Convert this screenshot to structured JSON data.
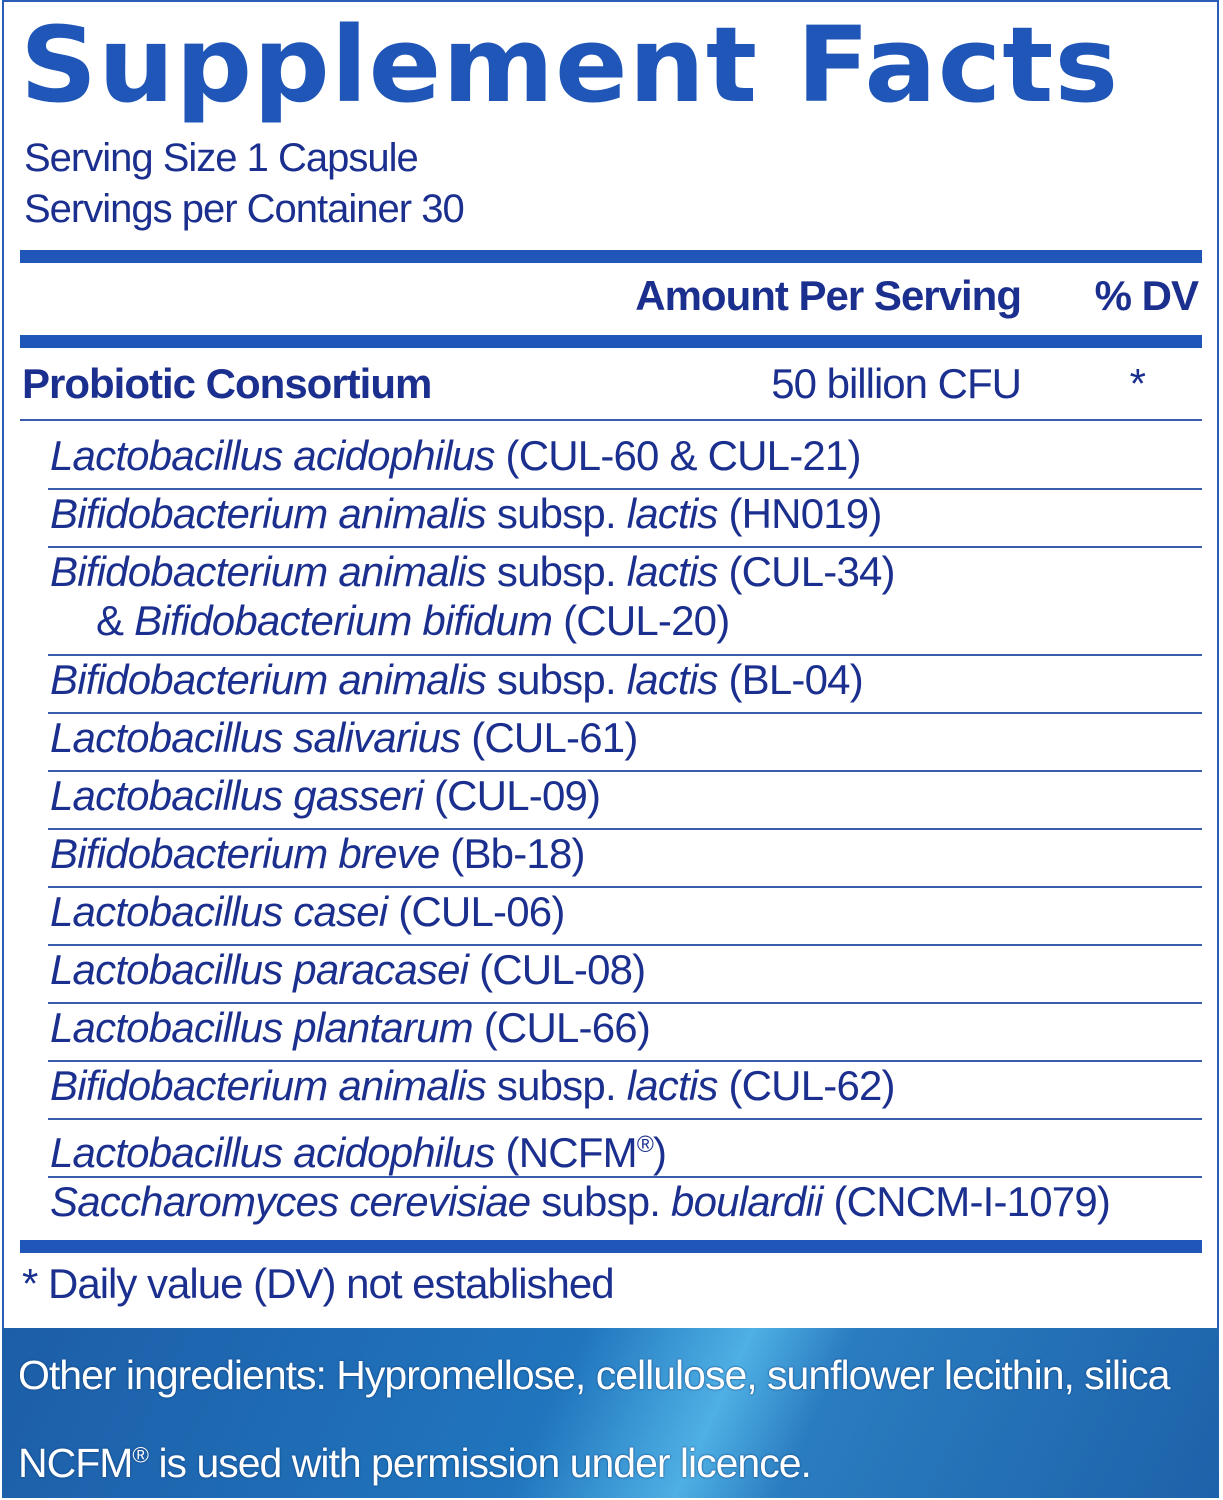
{
  "title": "Supplement Facts",
  "serving_size": "Serving Size 1 Capsule",
  "servings_per_container": "Servings per Container 30",
  "header": {
    "amount": "Amount Per Serving",
    "dv": "% DV"
  },
  "consortium": {
    "name": "Probiotic Consortium",
    "amount": "50 billion CFU",
    "dv": "*"
  },
  "ingredients": [
    [
      {
        "t": "Lactobacillus acidophilus",
        "i": true
      },
      {
        "t": " (CUL-60 & CUL-21)",
        "i": false
      }
    ],
    [
      {
        "t": "Bifidobacterium animalis",
        "i": true
      },
      {
        "t": " subsp. ",
        "i": false
      },
      {
        "t": "lactis",
        "i": true
      },
      {
        "t": " (HN019)",
        "i": false
      }
    ],
    [
      {
        "t": "Bifidobacterium animalis",
        "i": true
      },
      {
        "t": " subsp. ",
        "i": false
      },
      {
        "t": "lactis",
        "i": true
      },
      {
        "t": " (CUL-34)",
        "i": false
      }
    ],
    [
      {
        "t": "& ",
        "i": false
      },
      {
        "t": "Bifidobacterium bifidum",
        "i": true
      },
      {
        "t": " (CUL-20)",
        "i": false
      }
    ],
    [
      {
        "t": "Bifidobacterium animalis",
        "i": true
      },
      {
        "t": " subsp. ",
        "i": false
      },
      {
        "t": "lactis",
        "i": true
      },
      {
        "t": " (BL-04)",
        "i": false
      }
    ],
    [
      {
        "t": "Lactobacillus salivarius",
        "i": true
      },
      {
        "t": " (CUL-61)",
        "i": false
      }
    ],
    [
      {
        "t": "Lactobacillus gasseri",
        "i": true
      },
      {
        "t": " (CUL-09)",
        "i": false
      }
    ],
    [
      {
        "t": "Bifidobacterium breve",
        "i": true
      },
      {
        "t": " (Bb-18)",
        "i": false
      }
    ],
    [
      {
        "t": "Lactobacillus casei",
        "i": true
      },
      {
        "t": " (CUL-06)",
        "i": false
      }
    ],
    [
      {
        "t": "Lactobacillus paracasei",
        "i": true
      },
      {
        "t": " (CUL-08)",
        "i": false
      }
    ],
    [
      {
        "t": "Lactobacillus plantarum",
        "i": true
      },
      {
        "t": " (CUL-66)",
        "i": false
      }
    ],
    [
      {
        "t": "Bifidobacterium animalis",
        "i": true
      },
      {
        "t": " subsp. ",
        "i": false
      },
      {
        "t": "lactis",
        "i": true
      },
      {
        "t": " (CUL-62)",
        "i": false
      }
    ],
    [
      {
        "t": "Lactobacillus acidophilus",
        "i": true
      },
      {
        "t": " (NCFM",
        "i": false
      },
      {
        "t": "®",
        "i": false,
        "sup": true
      },
      {
        "t": ")",
        "i": false
      }
    ],
    [
      {
        "t": "Saccharomyces cerevisiae",
        "i": true
      },
      {
        "t": " subsp. ",
        "i": false
      },
      {
        "t": "boulardii",
        "i": true
      },
      {
        "t": " (CNCM-I-1079)",
        "i": false
      }
    ]
  ],
  "footnote": "* Daily value (DV) not established",
  "other_ingredients": "Other ingredients: Hypromellose, cellulose, sunflower lecithin, silica",
  "licence": {
    "mark": "NCFM",
    "reg": "®",
    "text": " is used with permission under licence."
  },
  "colors": {
    "title": "#1f56b8",
    "text": "#1b2f8f",
    "band": "#2075bd"
  }
}
